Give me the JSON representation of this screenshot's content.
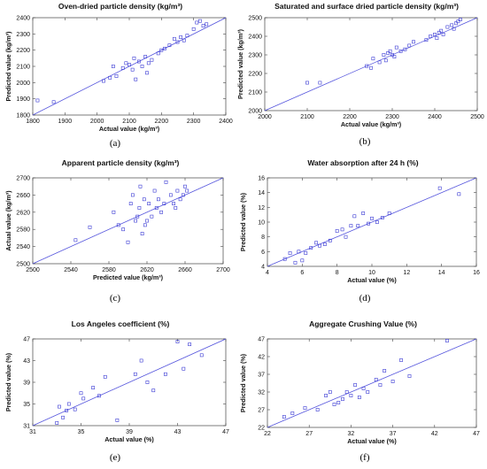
{
  "chart_data": [
    {
      "type": "scatter",
      "title": "Oven-dried particle density  (kg/m³)",
      "xlabel": "Actual value  (kg/m³)",
      "ylabel": "Predicted value (kg/m³)",
      "caption": "(a)",
      "xlim": [
        1800,
        2400
      ],
      "ylim": [
        1800,
        2400
      ],
      "xticks": [
        "1800",
        "1900",
        "2000",
        "2100",
        "2200",
        "2300",
        "2400"
      ],
      "yticks": [
        "1800",
        "1900",
        "2000",
        "2100",
        "2200",
        "2300",
        "2400"
      ],
      "xtick_values": [
        1800,
        1900,
        2000,
        2100,
        2200,
        2300,
        2400
      ],
      "ytick_values": [
        1800,
        1900,
        2000,
        2100,
        2200,
        2300,
        2400
      ],
      "fit_line": [
        [
          1800,
          1800
        ],
        [
          2400,
          2400
        ]
      ],
      "x": [
        1815,
        1865,
        2020,
        2040,
        2050,
        2060,
        2080,
        2090,
        2100,
        2110,
        2115,
        2120,
        2130,
        2140,
        2150,
        2155,
        2160,
        2170,
        2190,
        2200,
        2210,
        2225,
        2240,
        2250,
        2260,
        2270,
        2280,
        2300,
        2310,
        2320,
        2330,
        2340
      ],
      "y": [
        1890,
        1880,
        2010,
        2030,
        2100,
        2040,
        2090,
        2120,
        2110,
        2080,
        2150,
        2020,
        2130,
        2100,
        2160,
        2060,
        2120,
        2140,
        2180,
        2200,
        2210,
        2230,
        2270,
        2250,
        2280,
        2260,
        2290,
        2330,
        2370,
        2380,
        2350,
        2360
      ]
    },
    {
      "type": "scatter",
      "title": "Saturated and surface dried particle density  (kg/m³)",
      "xlabel": "Actual value  (kg/m³)",
      "ylabel": "Predicted value (kg/m³)",
      "caption": "(b)",
      "xlim": [
        2000,
        2500
      ],
      "ylim": [
        2000,
        2500
      ],
      "xticks": [
        "2000",
        "2100",
        "2200",
        "2300",
        "2400",
        "2500"
      ],
      "yticks": [
        "2000",
        "2100",
        "2200",
        "2300",
        "2400",
        "2500"
      ],
      "xtick_values": [
        2000,
        2100,
        2200,
        2300,
        2400,
        2500
      ],
      "ytick_values": [
        2000,
        2100,
        2200,
        2300,
        2400,
        2500
      ],
      "fit_line": [
        [
          2000,
          2000
        ],
        [
          2500,
          2500
        ]
      ],
      "x": [
        2100,
        2130,
        2240,
        2250,
        2255,
        2270,
        2280,
        2285,
        2290,
        2295,
        2300,
        2305,
        2310,
        2320,
        2330,
        2340,
        2350,
        2380,
        2390,
        2400,
        2405,
        2410,
        2415,
        2420,
        2430,
        2440,
        2445,
        2450,
        2455,
        2460
      ],
      "y": [
        2150,
        2150,
        2240,
        2230,
        2280,
        2260,
        2300,
        2270,
        2310,
        2320,
        2300,
        2290,
        2340,
        2320,
        2330,
        2350,
        2370,
        2380,
        2400,
        2410,
        2390,
        2420,
        2430,
        2410,
        2450,
        2460,
        2440,
        2470,
        2480,
        2490
      ]
    },
    {
      "type": "scatter",
      "title": "Apparent particle density  (kg/m³)",
      "xlabel": "Predicted value (kg/m³)",
      "ylabel": "Actual value  (kg/m³)",
      "caption": "(c)",
      "xlim": [
        2500,
        2700
      ],
      "ylim": [
        2500,
        2700
      ],
      "xticks": [
        "2500",
        "2540",
        "2580",
        "2620",
        "2660",
        "2700"
      ],
      "yticks": [
        "2500",
        "2540",
        "2580",
        "2620",
        "2660",
        "2700"
      ],
      "xtick_values": [
        2500,
        2540,
        2580,
        2620,
        2660,
        2700
      ],
      "ytick_values": [
        2500,
        2540,
        2580,
        2620,
        2660,
        2700
      ],
      "fit_line": [
        [
          2500,
          2500
        ],
        [
          2700,
          2700
        ]
      ],
      "x": [
        2545,
        2560,
        2585,
        2590,
        2595,
        2600,
        2603,
        2605,
        2608,
        2610,
        2612,
        2613,
        2615,
        2617,
        2618,
        2620,
        2622,
        2625,
        2628,
        2630,
        2632,
        2635,
        2638,
        2640,
        2645,
        2648,
        2650,
        2652,
        2655,
        2658,
        2660,
        2662
      ],
      "y": [
        2555,
        2585,
        2620,
        2590,
        2580,
        2550,
        2640,
        2660,
        2600,
        2610,
        2630,
        2680,
        2570,
        2650,
        2590,
        2600,
        2640,
        2610,
        2670,
        2630,
        2650,
        2620,
        2640,
        2690,
        2660,
        2640,
        2630,
        2670,
        2650,
        2660,
        2680,
        2670
      ]
    },
    {
      "type": "scatter",
      "title": "Water absorption after 24 h (%)",
      "xlabel": "Actual value (%)",
      "ylabel": "Predicted value (%)",
      "caption": "(d)",
      "xlim": [
        4,
        16
      ],
      "ylim": [
        4,
        16
      ],
      "xticks": [
        "4",
        "6",
        "8",
        "10",
        "12",
        "14",
        "16"
      ],
      "yticks": [
        "4",
        "6",
        "8",
        "10",
        "12",
        "14",
        "16"
      ],
      "xtick_values": [
        4,
        6,
        8,
        10,
        12,
        14,
        16
      ],
      "ytick_values": [
        4,
        6,
        8,
        10,
        12,
        14,
        16
      ],
      "fit_line": [
        [
          4,
          4
        ],
        [
          16,
          16
        ]
      ],
      "x": [
        5.0,
        5.3,
        5.6,
        5.8,
        6.0,
        6.2,
        6.5,
        6.8,
        7.0,
        7.3,
        7.6,
        8.0,
        8.3,
        8.5,
        8.8,
        9.0,
        9.2,
        9.5,
        9.8,
        10.0,
        10.3,
        10.6,
        11.0,
        13.9,
        15.0
      ],
      "y": [
        5.0,
        5.8,
        4.5,
        6.0,
        4.8,
        5.8,
        6.5,
        7.2,
        6.8,
        7.0,
        7.5,
        8.8,
        9.0,
        8.0,
        9.5,
        10.8,
        9.5,
        11.2,
        9.8,
        10.5,
        10.0,
        10.6,
        11.2,
        14.6,
        13.8
      ]
    },
    {
      "type": "scatter",
      "title": "Los Angeles coefficient (%)",
      "xlabel": "Actual value (%)",
      "ylabel": "Predicted value (%)",
      "caption": "(e)",
      "xlim": [
        31,
        47
      ],
      "ylim": [
        31,
        47
      ],
      "xticks": [
        "31",
        "35",
        "39",
        "43",
        "47"
      ],
      "yticks": [
        "31",
        "35",
        "39",
        "43",
        "47"
      ],
      "xtick_values": [
        31,
        35,
        39,
        43,
        47
      ],
      "ytick_values": [
        31,
        35,
        39,
        43,
        47
      ],
      "fit_line": [
        [
          31,
          31
        ],
        [
          47,
          47
        ]
      ],
      "x": [
        33.0,
        33.2,
        33.5,
        33.8,
        34.0,
        34.5,
        35.0,
        35.2,
        36.0,
        36.5,
        37.0,
        38.0,
        39.5,
        40.0,
        40.5,
        41.0,
        42.0,
        43.0,
        43.5,
        44.0,
        45.0
      ],
      "y": [
        31.5,
        34.5,
        32.5,
        33.8,
        35.0,
        34.0,
        37.0,
        36.0,
        38.0,
        36.5,
        40.0,
        32.0,
        40.5,
        43.0,
        39.0,
        37.5,
        40.5,
        46.5,
        41.5,
        46.0,
        44.0
      ]
    },
    {
      "type": "scatter",
      "title": "Aggregate Crushing Value (%)",
      "xlabel": "Actual value (%)",
      "ylabel": "Predicted value (%)",
      "caption": "(f)",
      "xlim": [
        22,
        47
      ],
      "ylim": [
        22,
        47
      ],
      "xticks": [
        "22",
        "27",
        "32",
        "37",
        "42",
        "47"
      ],
      "yticks": [
        "22",
        "27",
        "32",
        "37",
        "42",
        "47"
      ],
      "xtick_values": [
        22,
        27,
        32,
        37,
        42,
        47
      ],
      "ytick_values": [
        22,
        27,
        32,
        37,
        42,
        47
      ],
      "fit_line": [
        [
          22,
          22
        ],
        [
          47,
          47
        ]
      ],
      "x": [
        24.0,
        25.0,
        26.5,
        28.0,
        29.0,
        29.5,
        30.0,
        30.5,
        31.0,
        31.5,
        32.0,
        32.5,
        33.0,
        33.5,
        34.0,
        35.0,
        35.5,
        36.0,
        37.0,
        38.0,
        39.0,
        43.5
      ],
      "y": [
        25.0,
        26.0,
        27.5,
        27.0,
        31.0,
        32.0,
        28.5,
        29.0,
        30.0,
        32.0,
        31.0,
        34.0,
        30.5,
        33.0,
        32.0,
        35.5,
        34.0,
        38.0,
        35.0,
        41.0,
        36.5,
        46.5
      ]
    }
  ]
}
